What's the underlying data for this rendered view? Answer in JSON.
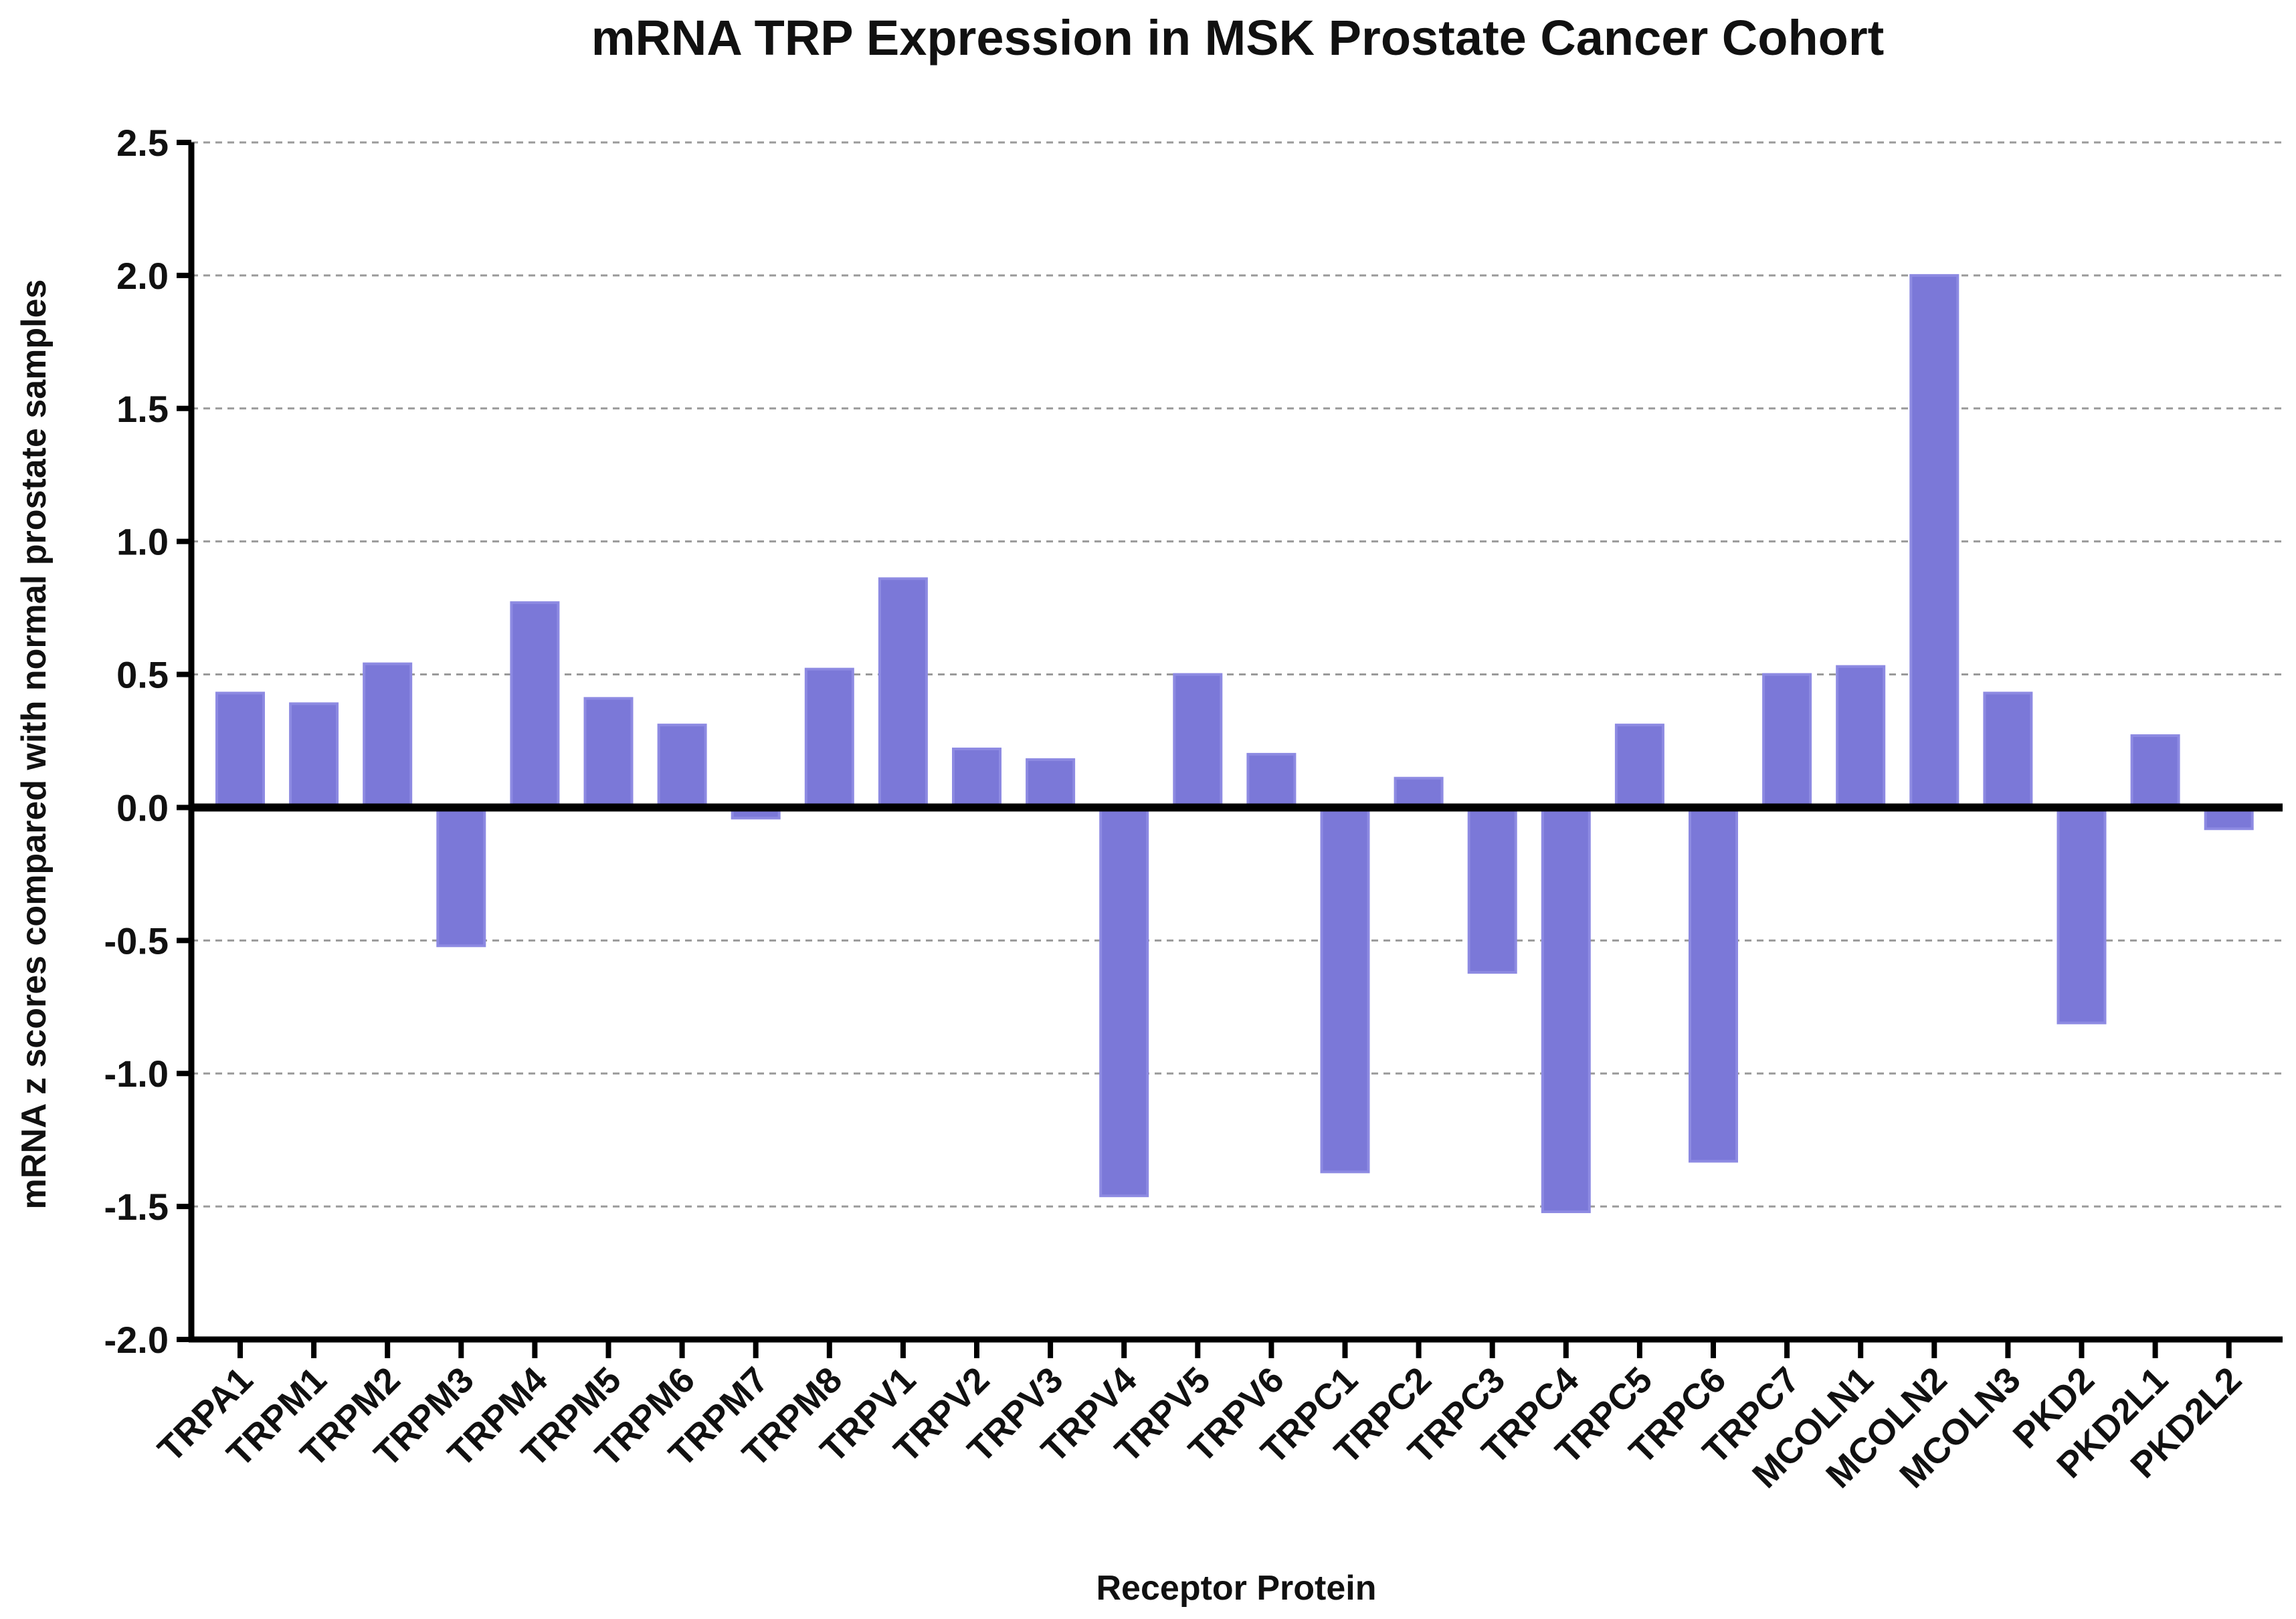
{
  "chart_data": {
    "type": "bar",
    "title": "mRNA TRP Expression in MSK Prostate Cancer Cohort",
    "xlabel": "Receptor Protein",
    "ylabel": "mRNA z scores compared with normal prostate samples",
    "ylim": [
      -2.0,
      2.5
    ],
    "yticks": [
      "2.5",
      "2.0",
      "1.5",
      "1.0",
      "0.5",
      "0.0",
      "-0.5",
      "-1.0",
      "-1.5",
      "-2.0"
    ],
    "grid": true,
    "categories": [
      "TRPA1",
      "TRPM1",
      "TRPM2",
      "TRPM3",
      "TRPM4",
      "TRPM5",
      "TRPM6",
      "TRPM7",
      "TRPM8",
      "TRPV1",
      "TRPV2",
      "TRPV3",
      "TRPV4",
      "TRPV5",
      "TRPV6",
      "TRPC1",
      "TRPC2",
      "TRPC3",
      "TRPC4",
      "TRPC5",
      "TRPC6",
      "TRPC7",
      "MCOLN1",
      "MCOLN2",
      "MCOLN3",
      "PKD2",
      "PKD2L1",
      "PKD2L2"
    ],
    "values": [
      0.43,
      0.39,
      0.54,
      -0.52,
      0.77,
      0.41,
      0.31,
      -0.04,
      0.52,
      0.86,
      0.22,
      0.18,
      -1.46,
      0.5,
      0.2,
      -1.37,
      0.11,
      -0.62,
      -1.52,
      0.31,
      -1.33,
      0.5,
      0.53,
      2.0,
      0.43,
      -0.81,
      0.27,
      -0.08
    ],
    "colors": {
      "bar_fill": "#7b78d8",
      "bar_stroke": "#8d8ae2"
    }
  }
}
